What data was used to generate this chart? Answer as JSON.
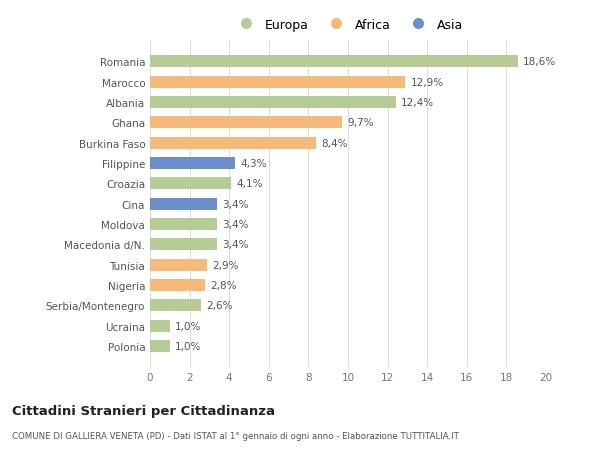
{
  "categories": [
    "Polonia",
    "Ucraina",
    "Serbia/Montenegro",
    "Nigeria",
    "Tunisia",
    "Macedonia d/N.",
    "Moldova",
    "Cina",
    "Croazia",
    "Filippine",
    "Burkina Faso",
    "Ghana",
    "Albania",
    "Marocco",
    "Romania"
  ],
  "values": [
    1.0,
    1.0,
    2.6,
    2.8,
    2.9,
    3.4,
    3.4,
    3.4,
    4.1,
    4.3,
    8.4,
    9.7,
    12.4,
    12.9,
    18.6
  ],
  "labels": [
    "1,0%",
    "1,0%",
    "2,6%",
    "2,8%",
    "2,9%",
    "3,4%",
    "3,4%",
    "3,4%",
    "4,1%",
    "4,3%",
    "8,4%",
    "9,7%",
    "12,4%",
    "12,9%",
    "18,6%"
  ],
  "continents": [
    "Europa",
    "Europa",
    "Europa",
    "Africa",
    "Africa",
    "Europa",
    "Europa",
    "Asia",
    "Europa",
    "Asia",
    "Africa",
    "Africa",
    "Europa",
    "Africa",
    "Europa"
  ],
  "colors": {
    "Europa": "#b5cc96",
    "Africa": "#f5b97a",
    "Asia": "#6b8fcc"
  },
  "xlim": [
    0,
    20
  ],
  "xticks": [
    0,
    2,
    4,
    6,
    8,
    10,
    12,
    14,
    16,
    18,
    20
  ],
  "title": "Cittadini Stranieri per Cittadinanza",
  "subtitle": "COMUNE DI GALLIERA VENETA (PD) - Dati ISTAT al 1° gennaio di ogni anno - Elaborazione TUTTITALIA.IT",
  "background_color": "#ffffff",
  "grid_color": "#dddddd",
  "bar_height": 0.6,
  "legend_order": [
    "Europa",
    "Africa",
    "Asia"
  ]
}
